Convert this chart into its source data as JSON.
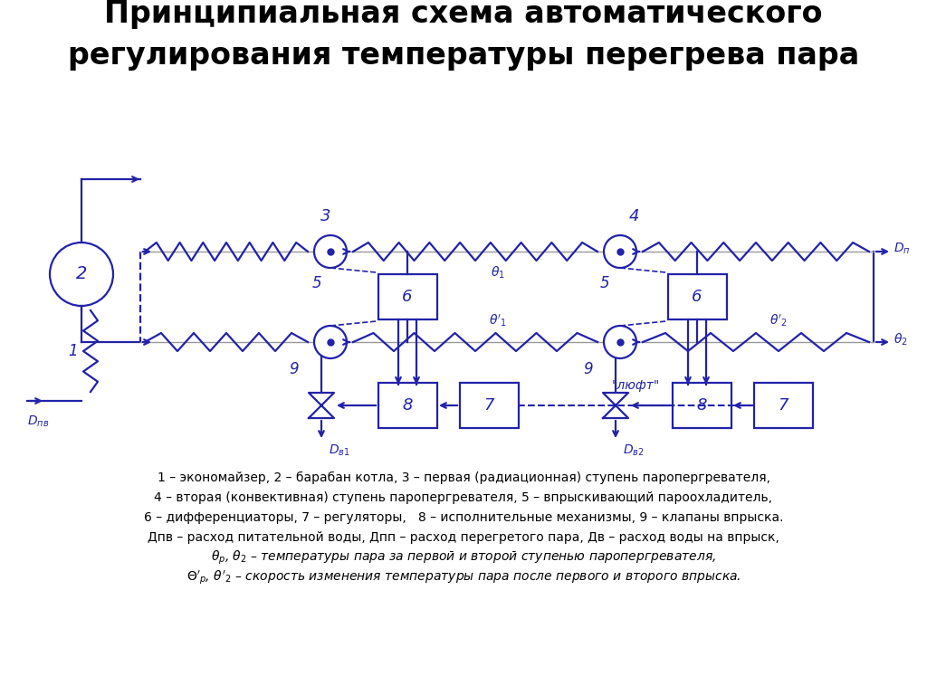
{
  "title": "Принципиальная схема автоматического\nрегулирования температуры перегрева пара",
  "title_fontsize": 24,
  "bg_color": "#ffffff",
  "diagram_color": "#2222aa",
  "legend_color": "#000000",
  "legend_lines_normal": [
    "1 – экономайзер, 2 – барабан котла, 3 – первая (радиационная) ступень паропергревателя,",
    "4 – вторая (конвективная) ступень паропергревателя, 5 – впрыскивающий пароохладитель,",
    "6 – дифференциаторы, 7 – регуляторы,   8 – исполнительные механизмы, 9 – клапаны впрыска.",
    "Дпв – расход питательной воды, Дпп – расход перегретого пара, Дв – расход воды на впрыск,"
  ],
  "legend_lines_italic": [
    "θр, θ2 – температуры пара за первой и второй ступенью паропергревателя,",
    "Θ'р, θ'2 – скорость изменения температуры пара после первого и второго впрыска."
  ]
}
